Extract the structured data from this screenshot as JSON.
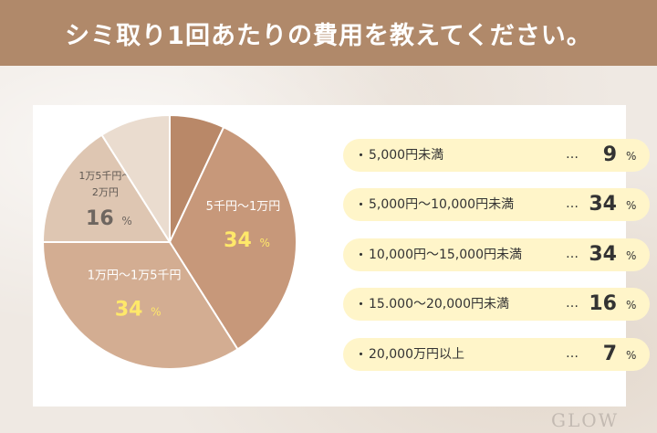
{
  "header": {
    "title": "シミ取り1回あたりの費用を教えてください。"
  },
  "chart_data": {
    "type": "pie",
    "title": "シミ取り1回あたりの費用を教えてください。",
    "slices": [
      {
        "label": "",
        "value": 7,
        "color": "#b98868",
        "show_label": false
      },
      {
        "label": "5千円～1万円",
        "value": 34,
        "color": "#c7987a",
        "show_label": true
      },
      {
        "label": "1万円～1万5千円",
        "value": 34,
        "color": "#d3ad92",
        "show_label": true
      },
      {
        "label": "1万5千円～2万円",
        "value": 16,
        "color": "#dec6b2",
        "show_label": true
      },
      {
        "label": "",
        "value": 9,
        "color": "#eadccf",
        "show_label": false
      }
    ],
    "value_unit": "%",
    "legend_placement": "right"
  },
  "list": {
    "bullet": "・",
    "dots": "…",
    "unit": "%",
    "items": [
      {
        "label": "5,000円未満",
        "value": "9"
      },
      {
        "label": "5,000円～10,000円未満",
        "value": "34"
      },
      {
        "label": "10,000円～15,000円未満",
        "value": "34"
      },
      {
        "label": "15.000～20,000円未満",
        "value": "16"
      },
      {
        "label": "20,000万円以上",
        "value": "7"
      }
    ]
  },
  "watermark": "GLOW",
  "colors": {
    "header_bg": "#b0896a",
    "list_row_bg": "#fff5c9",
    "highlight_value": "#ffe86a",
    "muted_value": "#6e6660"
  }
}
